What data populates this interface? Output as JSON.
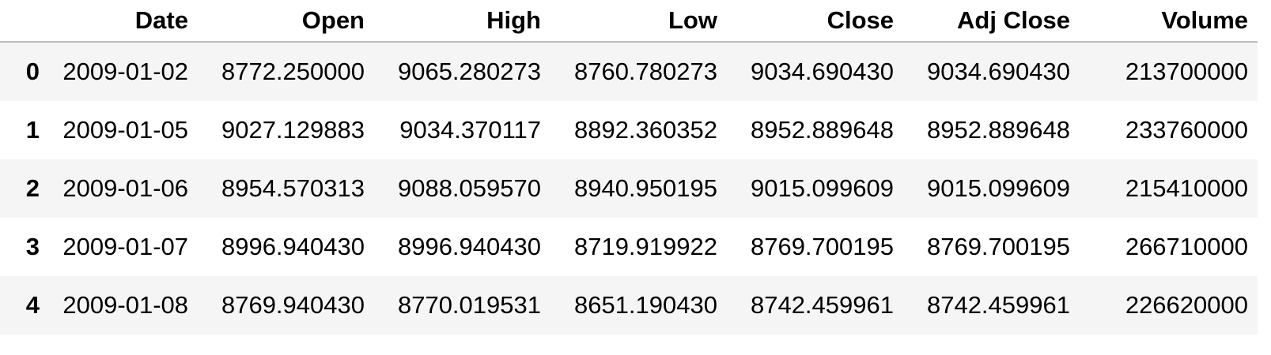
{
  "table": {
    "columns": [
      "",
      "Date",
      "Open",
      "High",
      "Low",
      "Close",
      "Adj Close",
      "Volume"
    ],
    "rows": [
      {
        "index": "0",
        "cells": [
          "2009-01-02",
          "8772.250000",
          "9065.280273",
          "8760.780273",
          "9034.690430",
          "9034.690430",
          "213700000"
        ]
      },
      {
        "index": "1",
        "cells": [
          "2009-01-05",
          "9027.129883",
          "9034.370117",
          "8892.360352",
          "8952.889648",
          "8952.889648",
          "233760000"
        ]
      },
      {
        "index": "2",
        "cells": [
          "2009-01-06",
          "8954.570313",
          "9088.059570",
          "8940.950195",
          "9015.099609",
          "9015.099609",
          "215410000"
        ]
      },
      {
        "index": "3",
        "cells": [
          "2009-01-07",
          "8996.940430",
          "8996.940430",
          "8719.919922",
          "8769.700195",
          "8769.700195",
          "266710000"
        ]
      },
      {
        "index": "4",
        "cells": [
          "2009-01-08",
          "8769.940430",
          "8770.019531",
          "8651.190430",
          "8742.459961",
          "8742.459961",
          "226620000"
        ]
      }
    ]
  },
  "colors": {
    "stripe": "#f5f5f5",
    "background": "#ffffff",
    "header_rule": "#bdbdbd",
    "text": "#000000"
  }
}
